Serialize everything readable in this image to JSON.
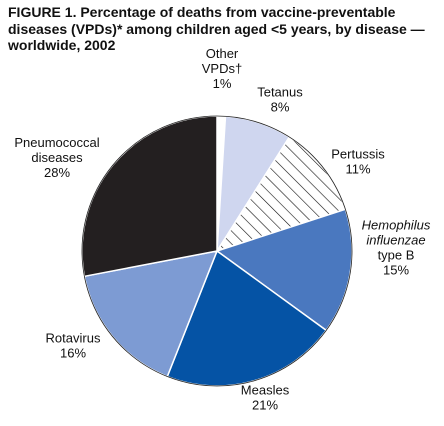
{
  "title": {
    "line1": "FIGURE 1. Percentage of deaths from vaccine-preventable",
    "line2": "diseases (VPDs)* among children aged <5 years, by disease —",
    "line3": "worldwide, 2002"
  },
  "chart_data": {
    "type": "pie",
    "title": "FIGURE 1. Percentage of deaths from vaccine-preventable diseases (VPDs)* among children aged <5 years, by disease — worldwide, 2002",
    "start": "12 o'clock",
    "direction": "clockwise",
    "slices": [
      {
        "label_lines": [
          "Other",
          "VPDs†"
        ],
        "value": 1,
        "value_label": "1%",
        "color": "#ffffff",
        "pattern": "none",
        "italic_lines": []
      },
      {
        "label_lines": [
          "Tetanus"
        ],
        "value": 8,
        "value_label": "8%",
        "color": "#cfd6ef",
        "pattern": "none",
        "italic_lines": []
      },
      {
        "label_lines": [
          "Pertussis"
        ],
        "value": 11,
        "value_label": "11%",
        "color": "#ffffff",
        "pattern": "hatch",
        "italic_lines": []
      },
      {
        "label_lines": [
          "Hemophilus",
          "influenzae",
          "type B"
        ],
        "value": 15,
        "value_label": "15%",
        "color": "#4a78bf",
        "pattern": "none",
        "italic_lines": [
          0,
          1
        ]
      },
      {
        "label_lines": [
          "Measles"
        ],
        "value": 21,
        "value_label": "21%",
        "color": "#0553a5",
        "pattern": "none",
        "italic_lines": []
      },
      {
        "label_lines": [
          "Rotavirus"
        ],
        "value": 16,
        "value_label": "16%",
        "color": "#7d9bd3",
        "pattern": "none",
        "italic_lines": []
      },
      {
        "label_lines": [
          "Pneumococcal",
          "diseases"
        ],
        "value": 28,
        "value_label": "28%",
        "color": "#231f20",
        "pattern": "none",
        "italic_lines": []
      }
    ]
  }
}
